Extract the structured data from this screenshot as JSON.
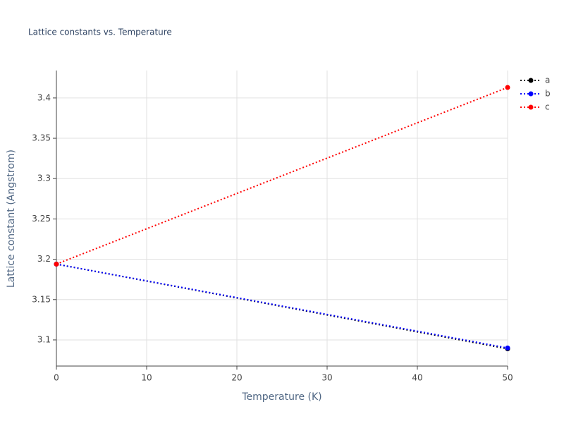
{
  "chart_data": {
    "type": "line",
    "title": "Lattice constants vs. Temperature",
    "x_label": "Temperature (K)",
    "y_label": "Lattice constant (Angstrom)",
    "x": [
      0,
      50
    ],
    "series": [
      {
        "name": "a",
        "color": "#000000",
        "values": [
          3.194,
          3.089
        ]
      },
      {
        "name": "b",
        "color": "#0000ff",
        "values": [
          3.194,
          3.09
        ]
      },
      {
        "name": "c",
        "color": "#ff0000",
        "values": [
          3.194,
          3.413
        ]
      }
    ],
    "xlim": [
      0,
      50
    ],
    "xticks": [
      0,
      10,
      20,
      30,
      40,
      50
    ],
    "ylim": [
      3.0676,
      3.434
    ],
    "yticks": [
      3.1,
      3.15,
      3.2,
      3.25,
      3.3,
      3.35,
      3.4
    ],
    "grid": true,
    "legend": "top-right"
  }
}
